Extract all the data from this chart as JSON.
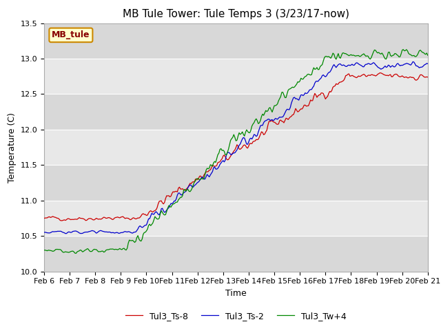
{
  "title": "MB Tule Tower: Tule Temps 3 (3/23/17-now)",
  "xlabel": "Time",
  "ylabel": "Temperature (C)",
  "ylim": [
    10.0,
    13.5
  ],
  "xlim": [
    0,
    360
  ],
  "yticks": [
    10.0,
    10.5,
    11.0,
    11.5,
    12.0,
    12.5,
    13.0,
    13.5
  ],
  "xtick_positions": [
    0,
    24,
    48,
    72,
    96,
    120,
    144,
    168,
    192,
    216,
    240,
    264,
    288,
    312,
    336,
    360
  ],
  "xtick_labels": [
    "Feb 6",
    "Feb 7",
    "Feb 8",
    "Feb 9",
    "Feb 10",
    "Feb 11",
    "Feb 12",
    "Feb 13",
    "Feb 14",
    "Feb 15",
    "Feb 16",
    "Feb 17",
    "Feb 18",
    "Feb 19",
    "Feb 20",
    "Feb 21"
  ],
  "color_red": "#cc0000",
  "color_blue": "#0000cc",
  "color_green": "#008800",
  "label_red": "Tul3_Ts-8",
  "label_blue": "Tul3_Ts-2",
  "label_green": "Tul3_Tw+4",
  "annotation_text": "MB_tule",
  "annotation_bg": "#ffffcc",
  "annotation_border": "#cc8800",
  "annotation_text_color": "#880000",
  "bg_color": "#ffffff",
  "plot_bg": "#e8e8e8",
  "band_light": "#e8e8e8",
  "band_dark": "#d8d8d8",
  "title_fontsize": 11,
  "axis_fontsize": 9,
  "tick_fontsize": 8,
  "legend_fontsize": 9
}
